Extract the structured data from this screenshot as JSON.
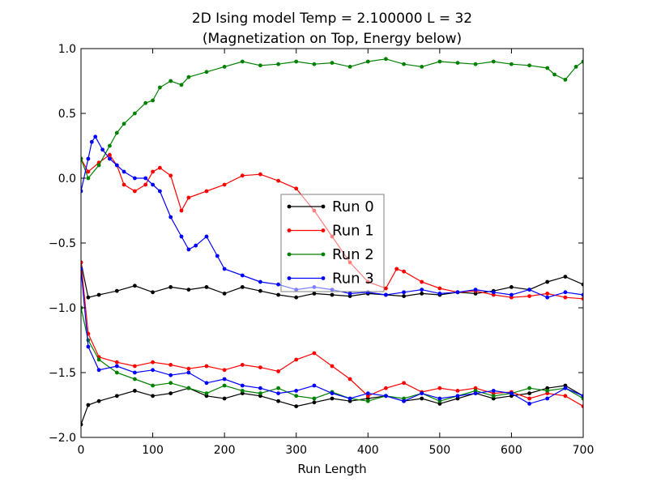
{
  "chart_data": {
    "type": "line",
    "title": "2D Ising model Temp = 2.100000 L = 32",
    "subtitle": "(Magnetization on Top, Energy below)",
    "xlabel": "Run Length",
    "ylabel": "",
    "xlim": [
      0,
      700
    ],
    "ylim": [
      -2.0,
      1.0
    ],
    "xticks": [
      0,
      100,
      200,
      300,
      400,
      500,
      600,
      700
    ],
    "yticks": [
      -2.0,
      -1.5,
      -1.0,
      -0.5,
      0.0,
      0.5,
      1.0
    ],
    "grid": false,
    "legend_position": "center",
    "series": [
      {
        "name": "Run 0",
        "color": "#000000",
        "magnetization": {
          "x": [
            0,
            10,
            25,
            50,
            75,
            100,
            125,
            150,
            175,
            200,
            225,
            250,
            275,
            300,
            325,
            350,
            375,
            400,
            425,
            450,
            475,
            500,
            525,
            550,
            575,
            600,
            625,
            650,
            675,
            700
          ],
          "y": [
            -0.65,
            -0.92,
            -0.9,
            -0.87,
            -0.83,
            -0.88,
            -0.84,
            -0.86,
            -0.84,
            -0.89,
            -0.84,
            -0.87,
            -0.9,
            -0.92,
            -0.89,
            -0.9,
            -0.91,
            -0.89,
            -0.9,
            -0.91,
            -0.89,
            -0.9,
            -0.88,
            -0.89,
            -0.87,
            -0.84,
            -0.86,
            -0.8,
            -0.76,
            -0.82
          ]
        },
        "energy": {
          "x": [
            0,
            10,
            25,
            50,
            75,
            100,
            125,
            150,
            175,
            200,
            225,
            250,
            275,
            300,
            325,
            350,
            375,
            400,
            425,
            450,
            475,
            500,
            525,
            550,
            575,
            600,
            625,
            650,
            675,
            700
          ],
          "y": [
            -1.9,
            -1.75,
            -1.72,
            -1.68,
            -1.64,
            -1.68,
            -1.66,
            -1.62,
            -1.68,
            -1.7,
            -1.66,
            -1.68,
            -1.72,
            -1.76,
            -1.73,
            -1.7,
            -1.72,
            -1.7,
            -1.68,
            -1.72,
            -1.7,
            -1.74,
            -1.7,
            -1.66,
            -1.7,
            -1.68,
            -1.66,
            -1.62,
            -1.6,
            -1.68
          ]
        }
      },
      {
        "name": "Run 1",
        "color": "#ff0000",
        "magnetization": {
          "x": [
            0,
            10,
            25,
            40,
            50,
            60,
            75,
            90,
            100,
            110,
            125,
            140,
            150,
            175,
            200,
            225,
            250,
            275,
            300,
            325,
            350,
            375,
            400,
            425,
            440,
            450,
            475,
            500,
            525,
            550,
            575,
            600,
            625,
            650,
            675,
            700
          ],
          "y": [
            0.15,
            0.05,
            0.12,
            0.18,
            0.1,
            -0.05,
            -0.1,
            -0.05,
            0.05,
            0.08,
            0.02,
            -0.25,
            -0.15,
            -0.1,
            -0.05,
            0.02,
            0.03,
            -0.02,
            -0.08,
            -0.25,
            -0.45,
            -0.65,
            -0.8,
            -0.85,
            -0.7,
            -0.72,
            -0.8,
            -0.85,
            -0.88,
            -0.87,
            -0.9,
            -0.92,
            -0.91,
            -0.89,
            -0.92,
            -0.93
          ]
        },
        "energy": {
          "x": [
            0,
            10,
            25,
            50,
            75,
            100,
            125,
            150,
            175,
            200,
            225,
            250,
            275,
            300,
            325,
            350,
            375,
            400,
            425,
            450,
            475,
            500,
            525,
            550,
            575,
            600,
            625,
            650,
            675,
            700
          ],
          "y": [
            -0.65,
            -1.2,
            -1.38,
            -1.42,
            -1.45,
            -1.42,
            -1.44,
            -1.47,
            -1.45,
            -1.48,
            -1.44,
            -1.46,
            -1.49,
            -1.4,
            -1.35,
            -1.45,
            -1.55,
            -1.68,
            -1.62,
            -1.58,
            -1.65,
            -1.62,
            -1.64,
            -1.62,
            -1.66,
            -1.65,
            -1.7,
            -1.66,
            -1.68,
            -1.76
          ]
        }
      },
      {
        "name": "Run 2",
        "color": "#008000",
        "magnetization": {
          "x": [
            0,
            10,
            25,
            40,
            50,
            60,
            75,
            90,
            100,
            110,
            125,
            140,
            150,
            175,
            200,
            225,
            250,
            275,
            300,
            325,
            350,
            375,
            400,
            425,
            450,
            475,
            500,
            525,
            550,
            575,
            600,
            625,
            650,
            660,
            675,
            690,
            700
          ],
          "y": [
            0.15,
            0.0,
            0.1,
            0.25,
            0.35,
            0.42,
            0.5,
            0.58,
            0.6,
            0.7,
            0.75,
            0.72,
            0.78,
            0.82,
            0.86,
            0.9,
            0.87,
            0.88,
            0.9,
            0.88,
            0.89,
            0.86,
            0.9,
            0.92,
            0.88,
            0.86,
            0.9,
            0.89,
            0.88,
            0.9,
            0.88,
            0.87,
            0.85,
            0.8,
            0.76,
            0.86,
            0.9
          ]
        },
        "energy": {
          "x": [
            0,
            10,
            25,
            50,
            75,
            100,
            125,
            150,
            175,
            200,
            225,
            250,
            275,
            300,
            325,
            350,
            375,
            400,
            425,
            450,
            475,
            500,
            525,
            550,
            575,
            600,
            625,
            650,
            675,
            700
          ],
          "y": [
            -1.0,
            -1.25,
            -1.4,
            -1.5,
            -1.55,
            -1.6,
            -1.58,
            -1.62,
            -1.66,
            -1.6,
            -1.64,
            -1.66,
            -1.62,
            -1.68,
            -1.7,
            -1.65,
            -1.7,
            -1.72,
            -1.68,
            -1.7,
            -1.66,
            -1.72,
            -1.68,
            -1.64,
            -1.68,
            -1.66,
            -1.62,
            -1.64,
            -1.62,
            -1.7
          ]
        }
      },
      {
        "name": "Run 3",
        "color": "#0000ff",
        "magnetization": {
          "x": [
            0,
            10,
            15,
            20,
            30,
            40,
            50,
            60,
            75,
            90,
            100,
            110,
            125,
            140,
            150,
            160,
            175,
            190,
            200,
            225,
            250,
            275,
            300,
            325,
            350,
            375,
            400,
            425,
            450,
            475,
            500,
            525,
            550,
            575,
            600,
            625,
            650,
            675,
            700
          ],
          "y": [
            -0.1,
            0.15,
            0.28,
            0.32,
            0.22,
            0.15,
            0.1,
            0.05,
            0.0,
            0.0,
            -0.05,
            -0.1,
            -0.3,
            -0.45,
            -0.55,
            -0.52,
            -0.45,
            -0.6,
            -0.7,
            -0.75,
            -0.8,
            -0.82,
            -0.86,
            -0.84,
            -0.86,
            -0.89,
            -0.88,
            -0.9,
            -0.88,
            -0.86,
            -0.89,
            -0.88,
            -0.86,
            -0.88,
            -0.9,
            -0.86,
            -0.92,
            -0.88,
            -0.9
          ]
        },
        "energy": {
          "x": [
            0,
            10,
            25,
            50,
            75,
            100,
            125,
            150,
            175,
            200,
            225,
            250,
            275,
            300,
            325,
            350,
            375,
            400,
            425,
            450,
            475,
            500,
            525,
            550,
            575,
            600,
            625,
            650,
            675,
            700
          ],
          "y": [
            -0.7,
            -1.3,
            -1.48,
            -1.45,
            -1.5,
            -1.48,
            -1.52,
            -1.5,
            -1.58,
            -1.55,
            -1.6,
            -1.62,
            -1.66,
            -1.64,
            -1.6,
            -1.66,
            -1.7,
            -1.66,
            -1.68,
            -1.72,
            -1.66,
            -1.7,
            -1.68,
            -1.66,
            -1.64,
            -1.66,
            -1.74,
            -1.7,
            -1.62,
            -1.68
          ]
        }
      }
    ]
  }
}
